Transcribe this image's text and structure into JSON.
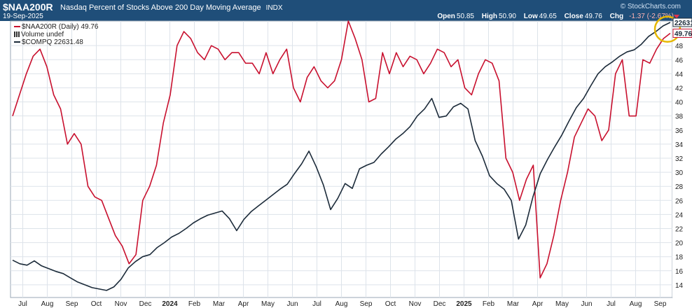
{
  "header": {
    "symbol": "$NAA200R",
    "description": "Nasdaq Percent of Stocks Above 200 Day Moving Average",
    "exchange": "INDX",
    "date": "19-Sep-2025",
    "brand": "© StockCharts.com",
    "open_label": "Open",
    "open": "50.85",
    "high_label": "High",
    "high": "50.90",
    "low_label": "Low",
    "low": "49.65",
    "close_label": "Close",
    "close": "49.76",
    "chg_label": "Chg",
    "chg": "-1.37 (-2.67%)"
  },
  "legend": {
    "naa": "$NAA200R (Daily) 49.76",
    "volume": "Volume undef",
    "compq": "$COMPQ 22631.48"
  },
  "colors": {
    "naa": "#c8102e",
    "compq": "#1c2b3a",
    "accent": "#1f4e79",
    "highlight": "#e6b800"
  },
  "chart_data": {
    "type": "line",
    "x_ticks": [
      "Jul",
      "Aug",
      "Sep",
      "Oct",
      "Nov",
      "Dec",
      "2024",
      "Feb",
      "Mar",
      "Apr",
      "May",
      "Jun",
      "Jul",
      "Aug",
      "Sep",
      "Oct",
      "Nov",
      "Dec",
      "2025",
      "Feb",
      "Mar",
      "Apr",
      "May",
      "Jun",
      "Jul",
      "Aug",
      "Sep"
    ],
    "y_ticks": [
      14,
      16,
      18,
      20,
      22,
      24,
      26,
      28,
      30,
      32,
      34,
      36,
      38,
      40,
      42,
      44,
      46,
      48
    ],
    "ylim": [
      12.2,
      51.5
    ],
    "grid": true,
    "last_value_labels": {
      "compq": "22631",
      "naa": "49.76"
    },
    "series": [
      {
        "name": "$NAA200R",
        "values": [
          38,
          41,
          44,
          46.5,
          47.5,
          45,
          41,
          39,
          34,
          35.5,
          34,
          28,
          26.5,
          26,
          23.5,
          21,
          19.5,
          17,
          18.3,
          26,
          28,
          31,
          37,
          41,
          48,
          50,
          49,
          47,
          46,
          48,
          47.5,
          46,
          47,
          47,
          45.5,
          45.5,
          44,
          47,
          44,
          46,
          47.5,
          42,
          40,
          43.5,
          45,
          43,
          42,
          43,
          46,
          51.5,
          49,
          46,
          40,
          40.5,
          47,
          44,
          47,
          45,
          46.5,
          46,
          44,
          45.5,
          47.5,
          47,
          45,
          46,
          42,
          41,
          44,
          46,
          45.5,
          43,
          32,
          30,
          26,
          29,
          31,
          15,
          17,
          21,
          26,
          30,
          35,
          37,
          39,
          38,
          34.5,
          36,
          44,
          46,
          38,
          38,
          46,
          45.5,
          47.5,
          49,
          49.76
        ]
      },
      {
        "name": "$COMPQ",
        "values": [
          17.5,
          17,
          16.8,
          17.4,
          16.7,
          16.3,
          15.9,
          15.6,
          15,
          14.4,
          14,
          13.6,
          13.4,
          13.2,
          13.7,
          14.8,
          16.4,
          17.3,
          18,
          18.3,
          19.3,
          20,
          20.8,
          21.3,
          22,
          22.8,
          23.4,
          23.9,
          24.2,
          24.5,
          23.4,
          21.7,
          23.3,
          24.4,
          25.2,
          26,
          26.8,
          27.6,
          28.3,
          29.8,
          31.2,
          33,
          30.8,
          28.2,
          24.7,
          26.3,
          28.4,
          27.7,
          30.5,
          31,
          31.4,
          32.6,
          33.6,
          34.7,
          35.5,
          36.5,
          38,
          39,
          40.5,
          37.8,
          38,
          39.3,
          39.8,
          39,
          34.5,
          32.3,
          29.5,
          28.4,
          27.6,
          26,
          20.5,
          22.5,
          26.5,
          29.8,
          31.8,
          33.6,
          35.3,
          37.3,
          39.2,
          40.5,
          42.3,
          44,
          45,
          45.7,
          46.5,
          47.1,
          47.4,
          48.2,
          49.3,
          50,
          50.8,
          51.3
        ]
      }
    ]
  }
}
